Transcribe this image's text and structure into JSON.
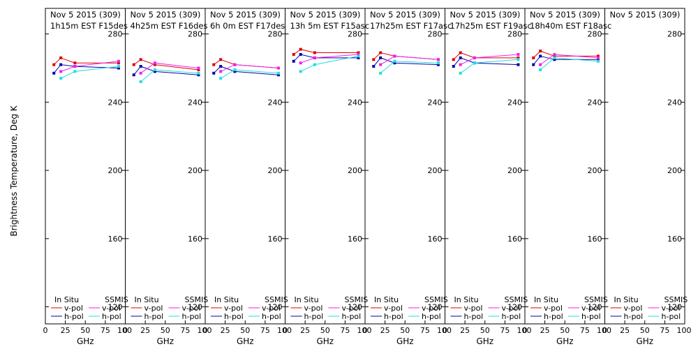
{
  "ylabel": "Brightness Temperature, Deg K",
  "xlabel": "GHz",
  "colors": {
    "in_situ_v": "#dd0000",
    "in_situ_h": "#0000aa",
    "ssmis_v": "#ee22ee",
    "ssmis_h": "#22dddd",
    "axis": "#000000"
  },
  "legend": {
    "in_situ": "In Situ",
    "ssmis": "SSMIS",
    "v_pol": "v-pol",
    "h_pol": "h-pol"
  },
  "chart_data": {
    "type": "line",
    "ylim": [
      110,
      295
    ],
    "xlim": [
      0,
      100
    ],
    "yticks": [
      120,
      160,
      200,
      240,
      280
    ],
    "xticks": [
      0,
      25,
      50,
      75,
      100
    ],
    "x_tick_labels": [
      "0",
      "25",
      "50",
      "75",
      "100"
    ],
    "freqs": [
      10.7,
      19.35,
      37,
      91.655
    ],
    "panels": [
      {
        "title_line1": "Nov 5 2015 (309)",
        "title_line2": "1h15m EST F15des",
        "series": [
          {
            "key": "in_situ_v",
            "x": [
              10.7,
              19.35,
              37,
              91.655
            ],
            "y": [
              262,
              266,
              263,
              263
            ]
          },
          {
            "key": "in_situ_h",
            "x": [
              10.7,
              19.35,
              37,
              91.655
            ],
            "y": [
              257,
              262,
              261,
              260
            ]
          },
          {
            "key": "ssmis_v",
            "x": [
              19.35,
              37,
              91.655
            ],
            "y": [
              258,
              261,
              264
            ]
          },
          {
            "key": "ssmis_h",
            "x": [
              19.35,
              37,
              91.655
            ],
            "y": [
              254,
              258,
              261
            ]
          }
        ]
      },
      {
        "title_line1": "Nov 5 2015 (309)",
        "title_line2": "4h25m EST F16des",
        "series": [
          {
            "key": "in_situ_v",
            "x": [
              10.7,
              19.35,
              37,
              91.655
            ],
            "y": [
              262,
              265,
              262,
              259
            ]
          },
          {
            "key": "in_situ_h",
            "x": [
              10.7,
              19.35,
              37,
              91.655
            ],
            "y": [
              256,
              261,
              258,
              256
            ]
          },
          {
            "key": "ssmis_v",
            "x": [
              19.35,
              37,
              91.655
            ],
            "y": [
              257,
              263,
              260
            ]
          },
          {
            "key": "ssmis_h",
            "x": [
              19.35,
              37,
              91.655
            ],
            "y": [
              252,
              259,
              257
            ]
          }
        ]
      },
      {
        "title_line1": "Nov 5 2015 (309)",
        "title_line2": "6h 0m EST F17des",
        "series": [
          {
            "key": "in_situ_v",
            "x": [
              10.7,
              19.35,
              37,
              91.655
            ],
            "y": [
              262,
              265,
              262,
              260
            ]
          },
          {
            "key": "in_situ_h",
            "x": [
              10.7,
              19.35,
              37,
              91.655
            ],
            "y": [
              257,
              261,
              258,
              256
            ]
          },
          {
            "key": "ssmis_v",
            "x": [
              19.35,
              37,
              91.655
            ],
            "y": [
              258,
              262,
              260
            ]
          },
          {
            "key": "ssmis_h",
            "x": [
              19.35,
              37,
              91.655
            ],
            "y": [
              254,
              259,
              257
            ]
          }
        ]
      },
      {
        "title_line1": "Nov 5 2015 (309)",
        "title_line2": "13h 5m EST F15asc",
        "series": [
          {
            "key": "in_situ_v",
            "x": [
              10.7,
              19.35,
              37,
              91.655
            ],
            "y": [
              268,
              271,
              269,
              269
            ]
          },
          {
            "key": "in_situ_h",
            "x": [
              10.7,
              19.35,
              37,
              91.655
            ],
            "y": [
              264,
              268,
              266,
              266
            ]
          },
          {
            "key": "ssmis_v",
            "x": [
              19.35,
              37,
              91.655
            ],
            "y": [
              263,
              266,
              268
            ]
          },
          {
            "key": "ssmis_h",
            "x": [
              19.35,
              37,
              91.655
            ],
            "y": [
              258,
              262,
              267
            ]
          }
        ]
      },
      {
        "title_line1": "Nov 5 2015 (309)",
        "title_line2": "17h25m EST F17asc",
        "series": [
          {
            "key": "in_situ_v",
            "x": [
              10.7,
              19.35,
              37,
              91.655
            ],
            "y": [
              265,
              269,
              267,
              265
            ]
          },
          {
            "key": "in_situ_h",
            "x": [
              10.7,
              19.35,
              37,
              91.655
            ],
            "y": [
              261,
              266,
              263,
              262
            ]
          },
          {
            "key": "ssmis_v",
            "x": [
              19.35,
              37,
              91.655
            ],
            "y": [
              262,
              267,
              265
            ]
          },
          {
            "key": "ssmis_h",
            "x": [
              19.35,
              37,
              91.655
            ],
            "y": [
              257,
              264,
              263
            ]
          }
        ]
      },
      {
        "title_line1": "Nov 5 2015 (309)",
        "title_line2": "17h25m EST F19asc",
        "series": [
          {
            "key": "in_situ_v",
            "x": [
              10.7,
              19.35,
              37,
              91.655
            ],
            "y": [
              265,
              269,
              266,
              266
            ]
          },
          {
            "key": "in_situ_h",
            "x": [
              10.7,
              19.35,
              37,
              91.655
            ],
            "y": [
              261,
              266,
              263,
              262
            ]
          },
          {
            "key": "ssmis_v",
            "x": [
              19.35,
              37,
              91.655
            ],
            "y": [
              262,
              266,
              268
            ]
          },
          {
            "key": "ssmis_h",
            "x": [
              19.35,
              37,
              91.655
            ],
            "y": [
              257,
              263,
              265
            ]
          }
        ]
      },
      {
        "title_line1": "Nov 5 2015 (309)",
        "title_line2": "18h40m EST F18asc",
        "series": [
          {
            "key": "in_situ_v",
            "x": [
              10.7,
              19.35,
              37,
              91.655
            ],
            "y": [
              266,
              270,
              267,
              267
            ]
          },
          {
            "key": "in_situ_h",
            "x": [
              10.7,
              19.35,
              37,
              91.655
            ],
            "y": [
              262,
              267,
              265,
              265
            ]
          },
          {
            "key": "ssmis_v",
            "x": [
              19.35,
              37,
              91.655
            ],
            "y": [
              262,
              268,
              266
            ]
          },
          {
            "key": "ssmis_h",
            "x": [
              19.35,
              37,
              91.655
            ],
            "y": [
              259,
              266,
              264
            ]
          }
        ]
      },
      {
        "title_line1": "Nov 5 2015 (309)",
        "title_line2": "",
        "series": []
      }
    ]
  }
}
